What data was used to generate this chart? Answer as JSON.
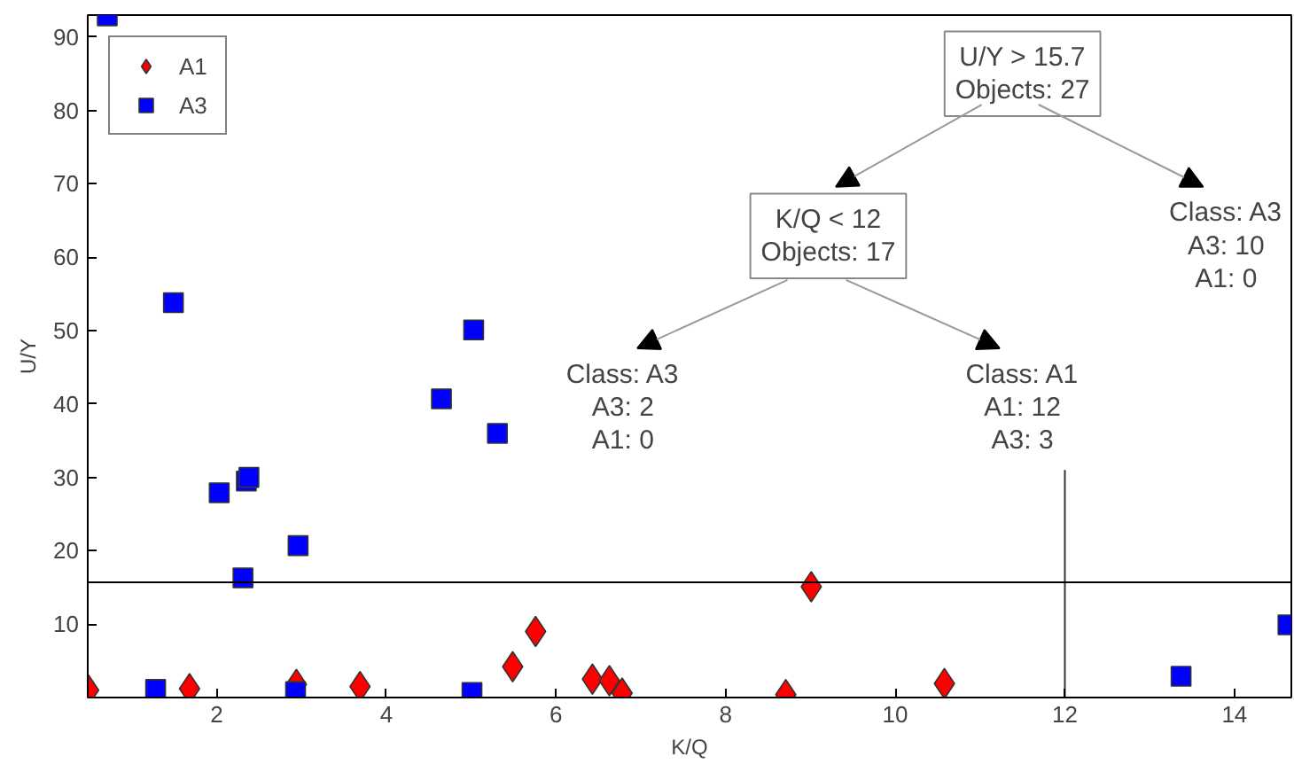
{
  "chart_data": {
    "type": "scatter",
    "xlabel": "K/Q",
    "ylabel": "U/Y",
    "xlim": [
      0.48,
      14.67
    ],
    "ylim": [
      0,
      93
    ],
    "xticks": [
      2,
      4,
      6,
      8,
      10,
      12,
      14
    ],
    "yticks": [
      10,
      20,
      30,
      40,
      50,
      60,
      70,
      80,
      90
    ],
    "grid": false,
    "legend": "top left",
    "series": [
      {
        "name": "A1",
        "color": "#ff0000",
        "marker": "diamond",
        "x": [
          0.49,
          1.68,
          2.94,
          3.69,
          5.49,
          5.76,
          6.43,
          6.63,
          6.78,
          9.01,
          8.71,
          10.58
        ],
        "values": [
          1.0,
          1.2,
          1.8,
          1.5,
          4.2,
          9.0,
          2.5,
          2.3,
          0.6,
          15.1,
          0.4,
          1.9
        ]
      },
      {
        "name": "A3",
        "color": "#0000ff",
        "marker": "square",
        "x": [
          0.71,
          1.49,
          5.03,
          1.28,
          2.03,
          2.35,
          2.38,
          2.31,
          2.96,
          2.93,
          4.65,
          5.31,
          5.01,
          13.37,
          14.63
        ],
        "values": [
          92.9,
          53.8,
          50.1,
          1.1,
          27.9,
          29.5,
          30.0,
          16.3,
          20.7,
          0.8,
          40.7,
          36.0,
          0.7,
          2.9,
          9.9
        ]
      },
      {
        "type": "line",
        "color": "#000000",
        "x": [
          12,
          12
        ],
        "values": [
          0,
          31
        ]
      }
    ],
    "ref_lines": [
      {
        "axis": "y",
        "value": 15.7,
        "color": "#000000"
      }
    ],
    "annotations": [
      "U/Y > 15.7\nObjects: 27",
      "K/Q < 12\nObjects: 17",
      "Class: A3\nA3: 10\nA1: 0",
      "Class: A3\nA3: 2\nA1: 0",
      "Class: A1\nA1: 12\nA3: 3"
    ]
  }
}
